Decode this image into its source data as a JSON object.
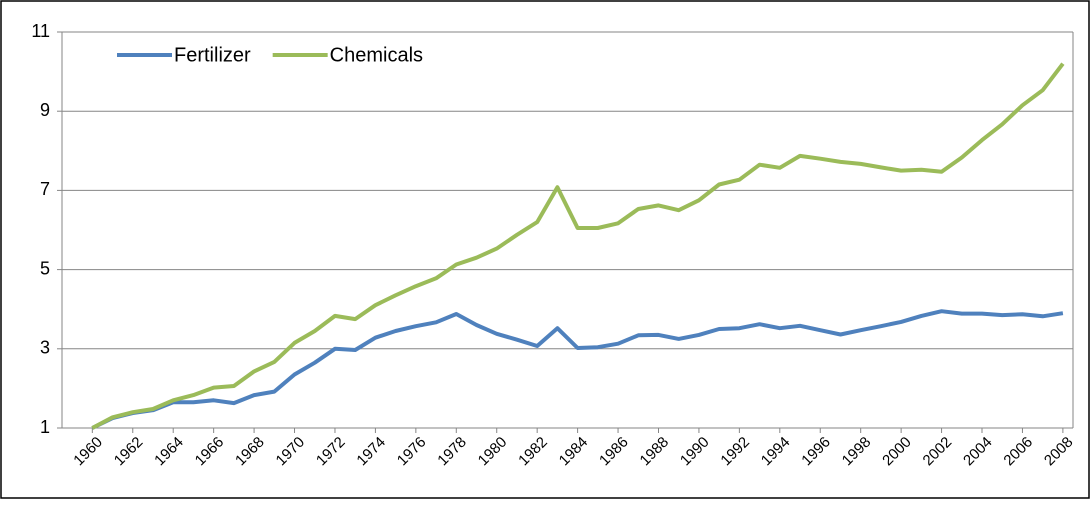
{
  "chart_data": {
    "type": "line",
    "x": [
      1960,
      1961,
      1962,
      1963,
      1964,
      1965,
      1966,
      1967,
      1968,
      1969,
      1970,
      1971,
      1972,
      1973,
      1974,
      1975,
      1976,
      1977,
      1978,
      1979,
      1980,
      1981,
      1982,
      1983,
      1984,
      1985,
      1986,
      1987,
      1988,
      1989,
      1990,
      1991,
      1992,
      1993,
      1994,
      1995,
      1996,
      1997,
      1998,
      1999,
      2000,
      2001,
      2002,
      2003,
      2004,
      2005,
      2006,
      2007,
      2008
    ],
    "series": [
      {
        "name": "Fertilizer",
        "color": "#4f81bd",
        "values": [
          1.0,
          1.25,
          1.38,
          1.45,
          1.65,
          1.65,
          1.7,
          1.63,
          1.83,
          1.92,
          2.35,
          2.65,
          3.0,
          2.97,
          3.28,
          3.45,
          3.57,
          3.67,
          3.88,
          3.6,
          3.38,
          3.23,
          3.07,
          3.52,
          3.02,
          3.04,
          3.13,
          3.34,
          3.35,
          3.25,
          3.35,
          3.5,
          3.52,
          3.62,
          3.52,
          3.58,
          3.47,
          3.36,
          3.47,
          3.57,
          3.68,
          3.83,
          3.95,
          3.89,
          3.89,
          3.85,
          3.87,
          3.82,
          3.9
        ]
      },
      {
        "name": "Chemicals",
        "color": "#9bbb59",
        "values": [
          1.0,
          1.27,
          1.4,
          1.48,
          1.7,
          1.83,
          2.02,
          2.06,
          2.43,
          2.67,
          3.15,
          3.45,
          3.83,
          3.75,
          4.1,
          4.35,
          4.58,
          4.78,
          5.13,
          5.3,
          5.53,
          5.88,
          6.2,
          7.08,
          6.05,
          6.05,
          6.17,
          6.53,
          6.62,
          6.5,
          6.75,
          7.15,
          7.27,
          7.65,
          7.57,
          7.87,
          7.8,
          7.72,
          7.67,
          7.58,
          7.5,
          7.52,
          7.47,
          7.83,
          8.27,
          8.67,
          9.15,
          9.53,
          10.2
        ]
      }
    ],
    "xlim": [
      1958.5,
      2008.5
    ],
    "xticks": [
      1960,
      1962,
      1964,
      1966,
      1968,
      1970,
      1972,
      1974,
      1976,
      1978,
      1980,
      1982,
      1984,
      1986,
      1988,
      1990,
      1992,
      1994,
      1996,
      1998,
      2000,
      2002,
      2004,
      2006,
      2008
    ],
    "ylim": [
      1,
      11
    ],
    "yticks": [
      1,
      3,
      5,
      7,
      9,
      11
    ],
    "grid": true,
    "legend": "top-left"
  }
}
